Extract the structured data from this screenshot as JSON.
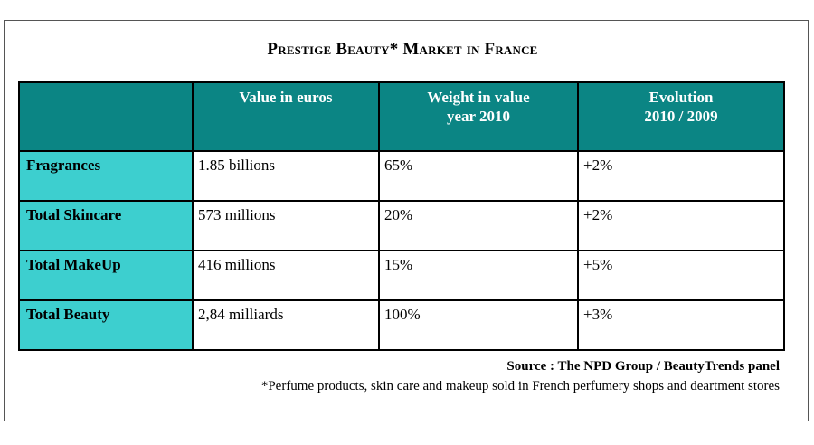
{
  "chart_data": {
    "type": "table",
    "title": "Prestige Beauty* Market in France",
    "columns": [
      "",
      "Value in euros",
      "Weight in value year 2010",
      "Evolution 2010 / 2009"
    ],
    "header_lines": [
      [
        ""
      ],
      [
        "Value in euros"
      ],
      [
        "Weight in value",
        "year 2010"
      ],
      [
        "Evolution",
        "2010 / 2009"
      ]
    ],
    "rows": [
      {
        "category": "Fragrances",
        "value": "1.85 billions",
        "weight": "65%",
        "evolution": "+2%"
      },
      {
        "category": "Total Skincare",
        "value": "573 millions",
        "weight": "20%",
        "evolution": "+2%"
      },
      {
        "category": "Total MakeUp",
        "value": "416 millions",
        "weight": "15%",
        "evolution": "+5%"
      },
      {
        "category": "Total Beauty",
        "value": "2,84 milliards",
        "weight": "100%",
        "evolution": "+3%"
      }
    ],
    "source": "Source : The NPD Group / BeautyTrends panel",
    "footnote": "*Perfume products, skin care and makeup sold in French perfumery shops and deartment stores"
  },
  "colors": {
    "header_bg": "#0b8584",
    "row_header_bg": "#3dcfcf",
    "header_text": "#ffffff"
  }
}
